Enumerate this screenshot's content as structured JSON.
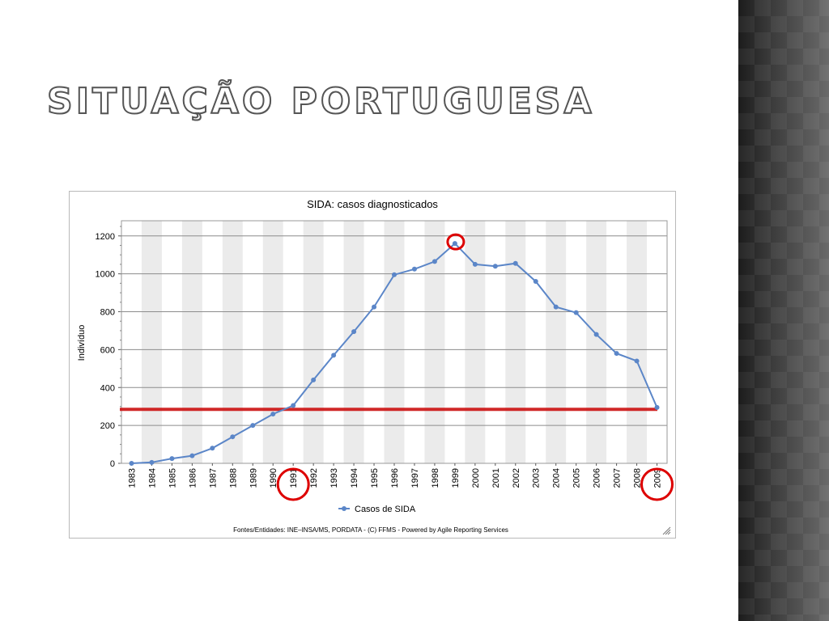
{
  "slide": {
    "title": "SITUAÇÃO PORTUGUESA"
  },
  "chart_data": {
    "type": "line",
    "title": "SIDA: casos diagnosticados",
    "xlabel": "",
    "ylabel": "Indivíduo",
    "ylim": [
      0,
      1280
    ],
    "yticks": [
      0,
      200,
      400,
      600,
      800,
      1000,
      1200
    ],
    "grid": true,
    "legend_position": "bottom",
    "categories": [
      "1983",
      "1984",
      "1985",
      "1986",
      "1987",
      "1988",
      "1989",
      "1990",
      "1991",
      "1992",
      "1993",
      "1994",
      "1995",
      "1996",
      "1997",
      "1998",
      "1999",
      "2000",
      "2001",
      "2002",
      "2003",
      "2004",
      "2005",
      "2006",
      "2007",
      "2008",
      "2009"
    ],
    "series": [
      {
        "name": "Casos de SIDA",
        "color": "#5b86c8",
        "values": [
          0,
          5,
          25,
          40,
          80,
          140,
          200,
          260,
          305,
          440,
          570,
          695,
          825,
          995,
          1025,
          1065,
          1160,
          1050,
          1040,
          1055,
          960,
          825,
          795,
          680,
          580,
          540,
          295
        ]
      }
    ],
    "annotations": {
      "reference_line_value": 285,
      "reference_line_color": "#cc1111",
      "circled_points": [
        "1999"
      ],
      "circled_ticks": [
        "1991",
        "2009"
      ]
    },
    "footer": "Fontes/Entidades: INE–INSA/MS, PORDATA - (C) FFMS - Powered by Agile Reporting Services"
  }
}
